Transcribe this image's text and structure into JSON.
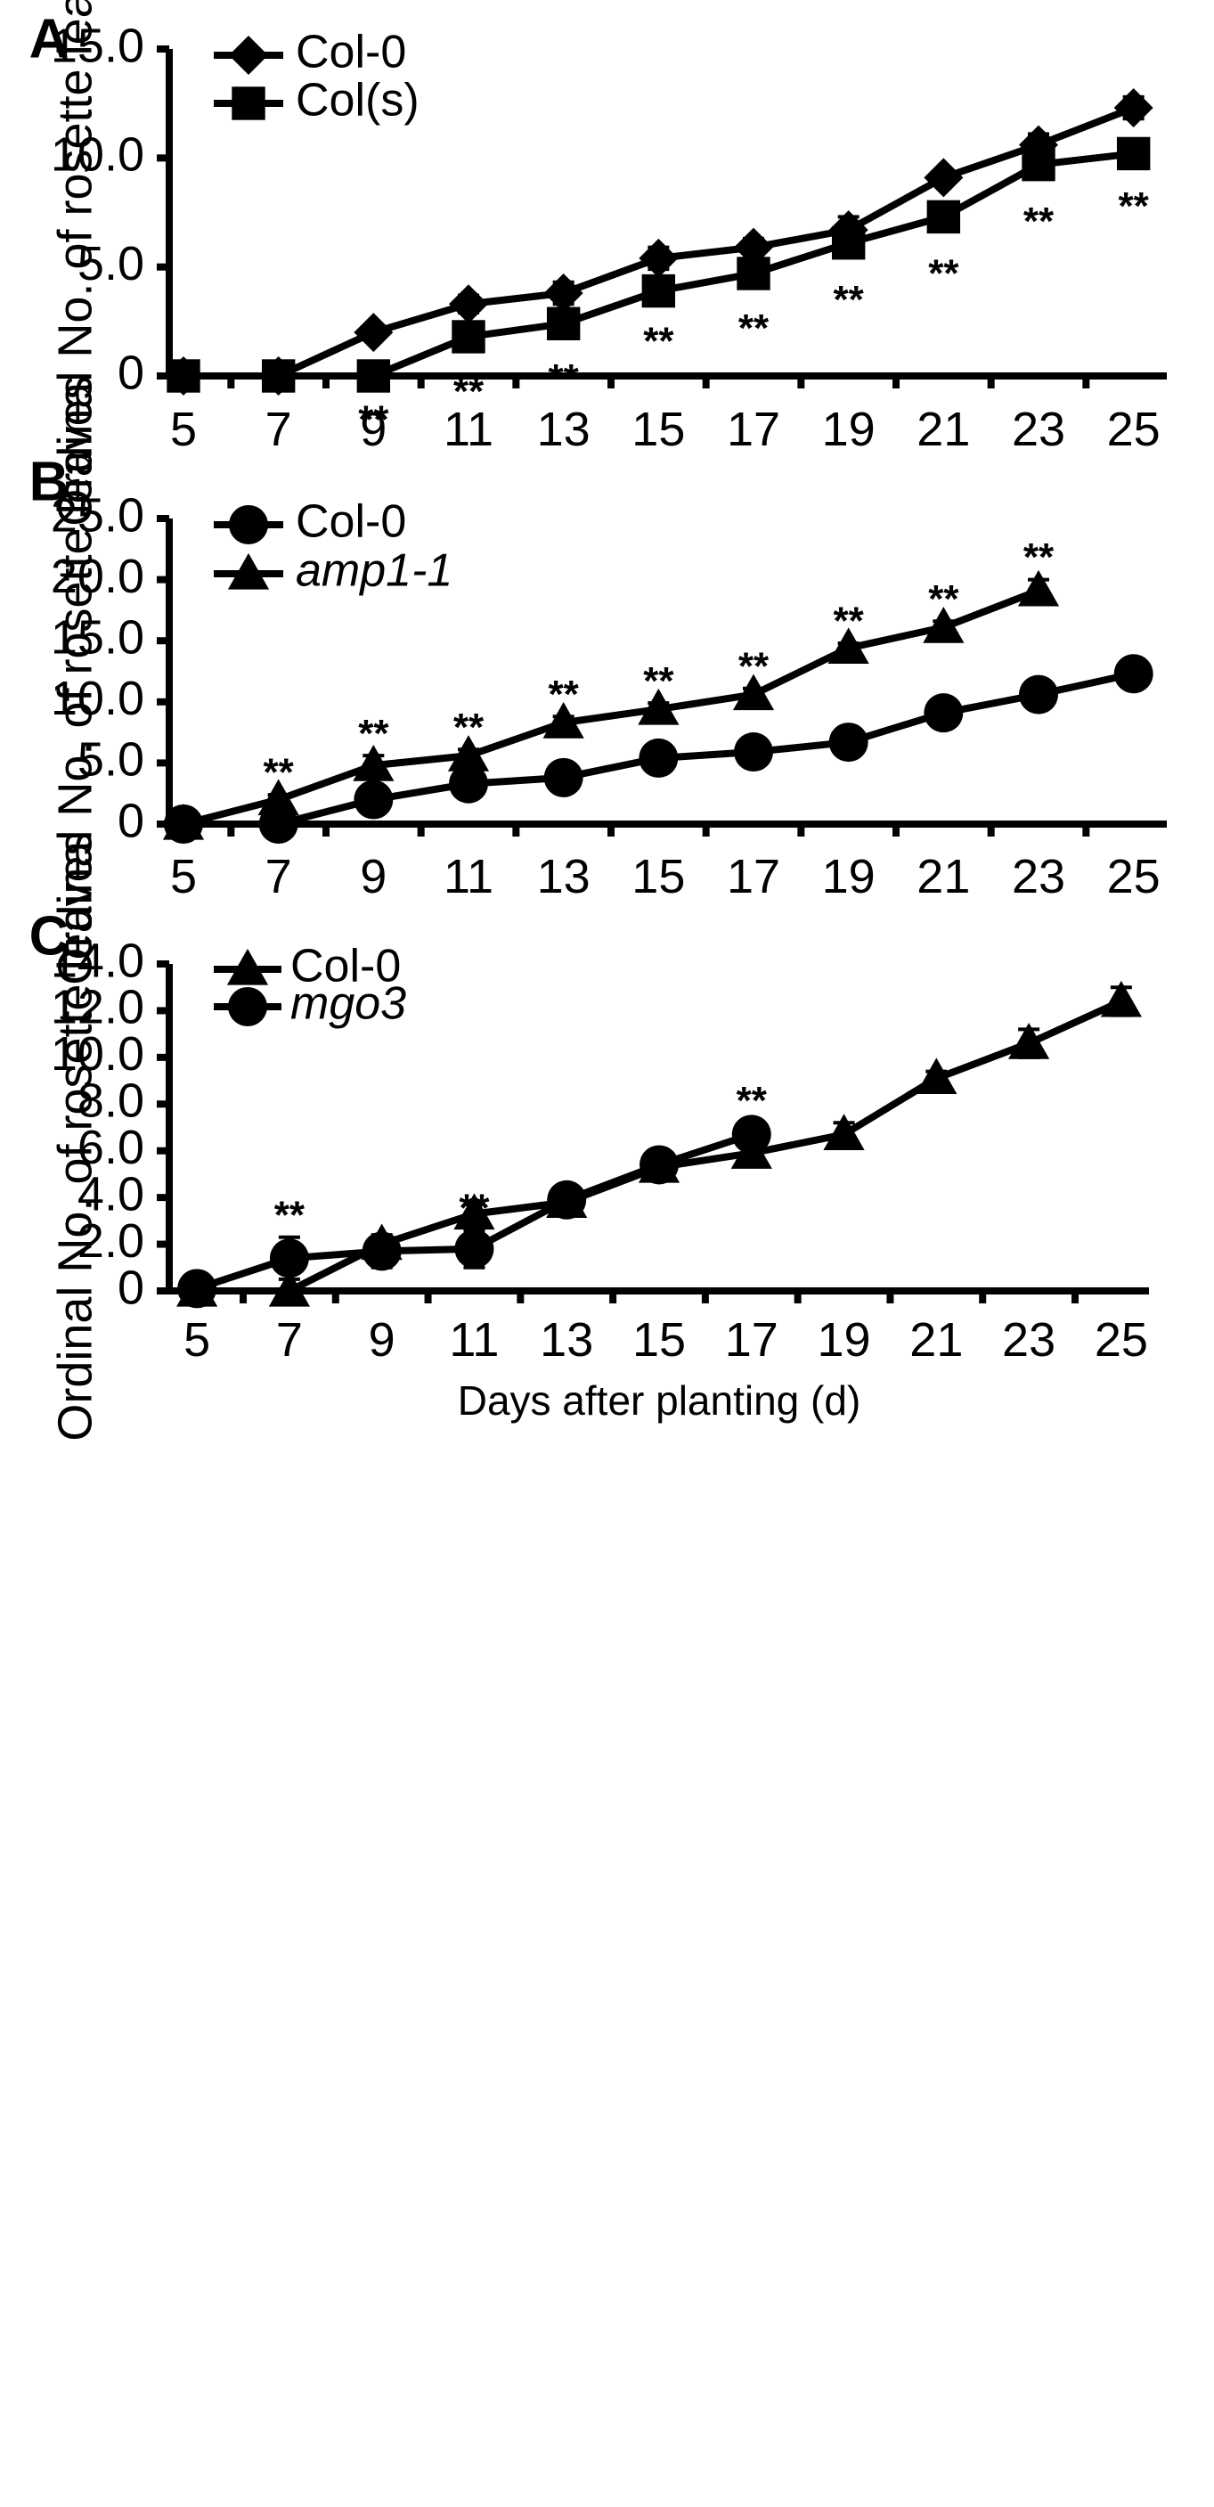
{
  "chart_data": [
    {
      "panel": "A",
      "type": "line",
      "ylabel": "Ordinal No. of rosette leaves",
      "xlabel": "",
      "ylim": [
        0,
        15
      ],
      "yticks": [
        "0",
        "5.0",
        "10.0",
        "15.0"
      ],
      "ytick_values": [
        0,
        5,
        10,
        15
      ],
      "xticks": [
        "5",
        "7",
        "9",
        "11",
        "13",
        "15",
        "17",
        "19",
        "21",
        "23",
        "25"
      ],
      "xtick_values": [
        5,
        7,
        9,
        11,
        13,
        15,
        17,
        19,
        21,
        23,
        25
      ],
      "xlim": [
        4.7,
        25.7
      ],
      "legend": "top-left",
      "series": [
        {
          "name": "Col-0",
          "marker": "diamond",
          "x": [
            5,
            7,
            9,
            11,
            13,
            15,
            17,
            19,
            21,
            23,
            25
          ],
          "values": [
            0,
            0,
            2.0,
            3.3,
            3.8,
            5.4,
            5.9,
            6.7,
            9.1,
            10.6,
            12.3
          ],
          "errors": [
            0,
            0,
            0.1,
            0.4,
            0.5,
            0.5,
            0.4,
            0.6,
            0.3,
            0.5,
            0.5
          ]
        },
        {
          "name": "Col(s)",
          "marker": "square",
          "x": [
            5,
            7,
            9,
            11,
            13,
            15,
            17,
            19,
            21,
            23,
            25
          ],
          "values": [
            0,
            0,
            0,
            1.8,
            2.4,
            3.9,
            4.7,
            6.1,
            7.3,
            9.7,
            10.2
          ],
          "errors": [
            0,
            0,
            0,
            0.5,
            0.5,
            0.3,
            0.5,
            0.6,
            0.6,
            0.6,
            0.4
          ],
          "significance": [
            {
              "x": 9,
              "label": "**"
            },
            {
              "x": 11,
              "label": "**"
            },
            {
              "x": 13,
              "label": "**"
            },
            {
              "x": 15,
              "label": "**"
            },
            {
              "x": 17,
              "label": "**"
            },
            {
              "x": 19,
              "label": "**"
            },
            {
              "x": 21,
              "label": "**"
            },
            {
              "x": 23,
              "label": "**"
            },
            {
              "x": 25,
              "label": "**"
            }
          ]
        }
      ]
    },
    {
      "panel": "B",
      "type": "line",
      "ylabel": "Ordinal No. of rosette leaves",
      "xlabel": "",
      "ylim": [
        0,
        25
      ],
      "yticks": [
        "0",
        "5.0",
        "10.0",
        "15.0",
        "20.0",
        "25.0"
      ],
      "ytick_values": [
        0,
        5,
        10,
        15,
        20,
        25
      ],
      "xticks": [
        "5",
        "7",
        "9",
        "11",
        "13",
        "15",
        "17",
        "19",
        "21",
        "23",
        "25"
      ],
      "xtick_values": [
        5,
        7,
        9,
        11,
        13,
        15,
        17,
        19,
        21,
        23,
        25
      ],
      "xlim": [
        4.7,
        25.7
      ],
      "legend": "top-left",
      "series": [
        {
          "name": "Col-0",
          "marker": "circle",
          "x": [
            5,
            7,
            9,
            11,
            13,
            15,
            17,
            19,
            21,
            23,
            25
          ],
          "values": [
            0,
            0,
            2.0,
            3.3,
            3.8,
            5.4,
            5.9,
            6.7,
            9.1,
            10.6,
            12.3
          ],
          "errors": [
            0,
            0,
            0.1,
            0.4,
            0.5,
            0.5,
            0.4,
            0.6,
            0.3,
            0.5,
            0.5
          ]
        },
        {
          "name": "amp1-1",
          "italic": true,
          "marker": "triangle",
          "x": [
            5,
            7,
            9,
            11,
            13,
            15,
            17,
            19,
            21,
            23
          ],
          "values": [
            0,
            2.0,
            4.8,
            5.6,
            8.3,
            9.4,
            10.6,
            14.4,
            16.1,
            19.1
          ],
          "errors": [
            0,
            0.4,
            0.8,
            0.5,
            0.5,
            0.5,
            0.5,
            0.4,
            0.5,
            0.9
          ],
          "significance": [
            {
              "x": 7,
              "label": "**"
            },
            {
              "x": 9,
              "label": "**"
            },
            {
              "x": 11,
              "label": "**"
            },
            {
              "x": 13,
              "label": "**"
            },
            {
              "x": 15,
              "label": "**"
            },
            {
              "x": 17,
              "label": "**"
            },
            {
              "x": 19,
              "label": "**"
            },
            {
              "x": 21,
              "label": "**"
            },
            {
              "x": 23,
              "label": "**"
            }
          ]
        }
      ]
    },
    {
      "panel": "C",
      "type": "line",
      "ylabel": "Ordinal No. of rosette leaves",
      "xlabel": "Days after planting (d)",
      "ylim": [
        0,
        14
      ],
      "yticks": [
        "0",
        "2.0",
        "4.0",
        "6.0",
        "8.0",
        "10.0",
        "12.0",
        "14.0"
      ],
      "ytick_values": [
        0,
        2,
        4,
        6,
        8,
        10,
        12,
        14
      ],
      "xticks": [
        "5",
        "7",
        "9",
        "11",
        "13",
        "15",
        "17",
        "19",
        "21",
        "23",
        "25"
      ],
      "xtick_values": [
        5,
        7,
        9,
        11,
        13,
        15,
        17,
        19,
        21,
        23,
        25
      ],
      "xlim": [
        4.4,
        25.6
      ],
      "legend": "top-left",
      "series": [
        {
          "name": "Col-0",
          "marker": "triangle",
          "x": [
            5,
            7,
            9,
            11,
            13,
            15,
            17,
            19,
            21,
            23,
            25
          ],
          "values": [
            0,
            0,
            2.0,
            3.3,
            3.8,
            5.3,
            5.9,
            6.7,
            9.1,
            10.6,
            12.4
          ],
          "errors": [
            0,
            0,
            0.1,
            0.4,
            0.5,
            0.4,
            0.4,
            0.5,
            0.3,
            0.6,
            0.6
          ]
        },
        {
          "name": "mgo3",
          "italic": true,
          "marker": "circle",
          "x": [
            5,
            7,
            9,
            11,
            13,
            15,
            17
          ],
          "values": [
            0.1,
            1.4,
            1.7,
            1.8,
            3.9,
            5.4,
            6.7
          ],
          "errors": [
            0.1,
            0.9,
            0.7,
            0.8,
            0.5,
            0.3,
            0.5
          ],
          "significance": [
            {
              "x": 7,
              "label": "**"
            },
            {
              "x": 11,
              "label": "**"
            },
            {
              "x": 17,
              "label": "**"
            }
          ]
        }
      ]
    }
  ]
}
